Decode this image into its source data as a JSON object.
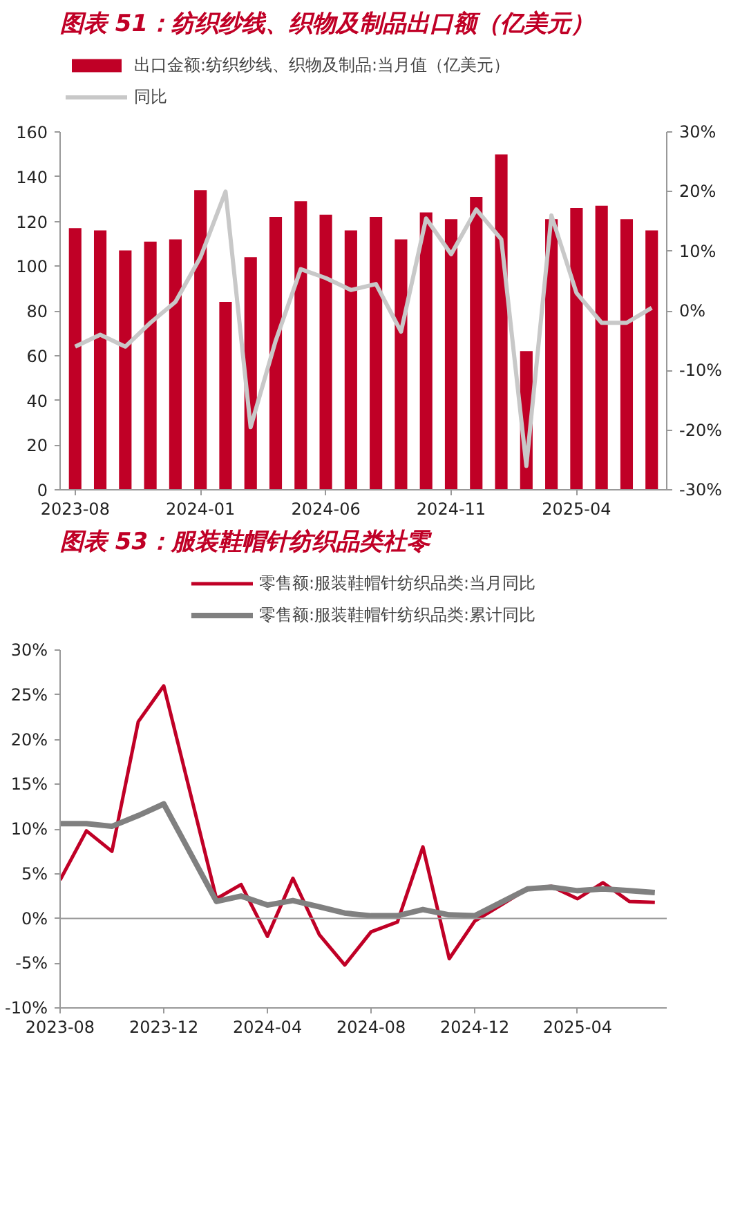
{
  "chart_data": [
    {
      "type": "bar",
      "title": "图表 51：纺织纱线、织物及制品出口额（亿美元）",
      "categories": [
        "2023-08",
        null,
        null,
        null,
        null,
        "2024-01",
        null,
        null,
        null,
        null,
        "2024-06",
        null,
        null,
        null,
        null,
        "2024-11",
        null,
        null,
        null,
        null,
        "2025-04",
        null,
        null,
        null
      ],
      "series": [
        {
          "name": "出口金额:纺织纱线、织物及制品:当月值（亿美元）",
          "color": "#c00026",
          "values": [
            117,
            116,
            107,
            111,
            112,
            134,
            84,
            104,
            122,
            129,
            123,
            116,
            122,
            112,
            124,
            121,
            131,
            150,
            62,
            121,
            126,
            127,
            121,
            116
          ]
        },
        {
          "name": "同比",
          "type": "line",
          "axis": "y2",
          "color": "#c8c8c8",
          "values": [
            -6,
            -4,
            -6,
            -2,
            1.5,
            9,
            20,
            -19.5,
            -5,
            7,
            5.5,
            3.5,
            4.5,
            -3.5,
            15.5,
            9.5,
            17,
            12,
            -26,
            16,
            3,
            -2,
            -2,
            0.5
          ]
        }
      ],
      "ylim": [
        0,
        160
      ],
      "yticks": [
        0,
        20,
        40,
        60,
        80,
        100,
        120,
        140,
        160
      ],
      "y2lim": [
        -30,
        30
      ],
      "y2ticks": [
        {
          "value": -30,
          "label": "-30%"
        },
        {
          "value": -20,
          "label": "-20%"
        },
        {
          "value": -10,
          "label": "-10%"
        },
        {
          "value": 0,
          "label": "0%"
        },
        {
          "value": 10,
          "label": "10%"
        },
        {
          "value": 20,
          "label": "20%"
        },
        {
          "value": 30,
          "label": "30%"
        }
      ],
      "grid": false,
      "legend": "top"
    },
    {
      "type": "line",
      "title": "图表 53：服装鞋帽针纺织品类社零",
      "x": [
        "2023-08",
        "2023-09",
        "2023-10",
        "2023-11",
        "2023-12",
        "2024-02",
        "2024-03",
        "2024-04",
        "2024-05",
        "2024-06",
        "2024-07",
        "2024-08",
        "2024-09",
        "2024-10",
        "2024-11",
        "2024-12",
        "2025-02",
        "2025-03",
        "2025-04",
        "2025-05",
        "2025-06",
        "2025-07"
      ],
      "series": [
        {
          "name": "零售额:服装鞋帽针纺织品类:当月同比",
          "color": "#c00026",
          "values": [
            4.3,
            9.8,
            7.5,
            22,
            26,
            2.2,
            3.8,
            -2,
            4.5,
            -1.8,
            -5.2,
            -1.5,
            -0.4,
            8,
            -4.5,
            -0.3,
            3.3,
            3.6,
            2.2,
            4,
            1.9,
            1.8
          ]
        },
        {
          "name": "零售额:服装鞋帽针纺织品类:累计同比",
          "color": "#808080",
          "values": [
            10.6,
            10.6,
            10.3,
            11.5,
            12.8,
            1.9,
            2.5,
            1.5,
            2.0,
            1.3,
            0.6,
            0.3,
            0.3,
            1.0,
            0.4,
            0.3,
            3.3,
            3.5,
            3.1,
            3.3,
            3.1,
            2.9
          ]
        }
      ],
      "xlim": [
        "2023-08",
        "2025-07-15"
      ],
      "xticks": [
        "2023-08",
        "2023-12",
        "2024-04",
        "2024-08",
        "2024-12",
        "2025-04"
      ],
      "ylim": [
        -10,
        30
      ],
      "yticks": [
        {
          "value": -10,
          "label": "-10%"
        },
        {
          "value": -5,
          "label": "-5%"
        },
        {
          "value": 0,
          "label": "0%"
        },
        {
          "value": 5,
          "label": "5%"
        },
        {
          "value": 10,
          "label": "10%"
        },
        {
          "value": 15,
          "label": "15%"
        },
        {
          "value": 20,
          "label": "20%"
        },
        {
          "value": 25,
          "label": "25%"
        },
        {
          "value": 30,
          "label": "30%"
        }
      ],
      "ref_lines": [
        {
          "axis": "y",
          "value": 0
        }
      ],
      "grid": false,
      "legend": "top"
    }
  ]
}
